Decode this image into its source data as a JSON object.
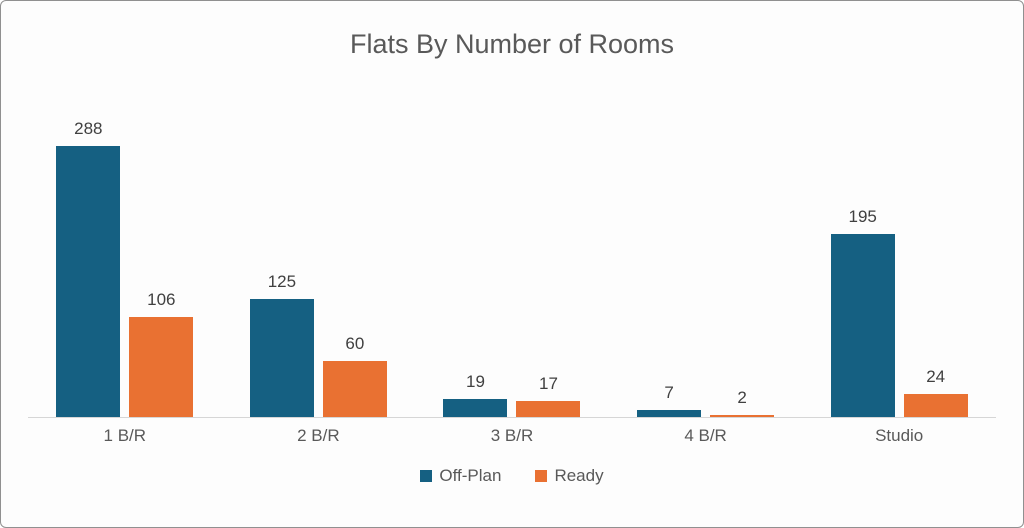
{
  "chart_data": {
    "type": "bar",
    "title": "Flats By Number of Rooms",
    "categories": [
      "1 B/R",
      "2 B/R",
      "3 B/R",
      "4 B/R",
      "Studio"
    ],
    "series": [
      {
        "name": "Off-Plan",
        "color": "#156082",
        "values": [
          288,
          125,
          19,
          7,
          195
        ]
      },
      {
        "name": "Ready",
        "color": "#E97132",
        "values": [
          106,
          60,
          17,
          2,
          24
        ]
      }
    ],
    "xlabel": "",
    "ylabel": "",
    "ylim": [
      0,
      300
    ],
    "grid": false,
    "data_labels": true,
    "legend_position": "bottom"
  }
}
